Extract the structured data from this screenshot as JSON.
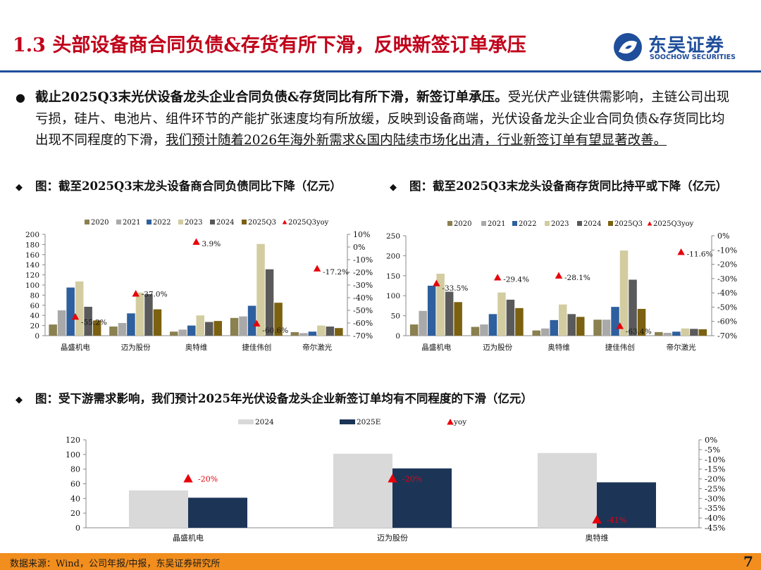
{
  "header": {
    "title": "1.3 头部设备商合同负债&存货有所下滑，反映新签订单承压",
    "logo_cn": "东吴证券",
    "logo_en": "SOOCHOW SECURITIES"
  },
  "bullet": {
    "bold": "截止2025Q3末光伏设备龙头企业合同负债&存货同比有所下滑，新签订单承压。",
    "normal": "受光伏产业链供需影响，主链公司出现亏损，硅片、电池片、组件环节的产能扩张速度均有所放缓，反映到设备商端，光伏设备龙头企业合同负债&存货同比均出现不同程度的下滑，",
    "underlined": "我们预计随着2026年海外新需求&国内陆续市场化出清，行业新签订单有望显著改善。"
  },
  "figures": {
    "fig1_title": "图：截至2025Q3末龙头设备商合同负债同比下降（亿元）",
    "fig2_title": "图：截至2025Q3末龙头设备商存货同比持平或下降（亿元）",
    "fig3_title": "图：受下游需求影响，我们预计2025年光伏设备龙头企业新签订单均有不同程度的下滑（亿元）"
  },
  "footer": {
    "source": "数据来源：Wind，公司年报/中报，东吴证券研究所",
    "page": "7"
  },
  "colors": {
    "title_red": "#c0001a",
    "brand_blue": "#1f4e9a",
    "footer_orange": "#f28e1d",
    "s2020": "#8a8050",
    "s2021": "#a9a9a9",
    "s2022": "#2e5f9e",
    "s2023": "#d2cca0",
    "s2024": "#5a5a5a",
    "s2025Q3": "#7b6110",
    "yoy": "#e8000b",
    "s2024_light": "#d9d9d9",
    "s2025E": "#1c3557"
  },
  "chart_data": [
    {
      "id": "chart1",
      "type": "bar",
      "categories": [
        "晶盛机电",
        "迈为股份",
        "奥特维",
        "捷佳伟创",
        "帝尔激光"
      ],
      "series": [
        {
          "name": "2020",
          "values": [
            22,
            18,
            8,
            35,
            7
          ]
        },
        {
          "name": "2021",
          "values": [
            50,
            25,
            12,
            38,
            5
          ]
        },
        {
          "name": "2022",
          "values": [
            95,
            44,
            20,
            59,
            8
          ]
        },
        {
          "name": "2023",
          "values": [
            107,
            85,
            40,
            181,
            20
          ]
        },
        {
          "name": "2024",
          "values": [
            57,
            82,
            27,
            131,
            18
          ]
        },
        {
          "name": "2025Q3",
          "values": [
            30,
            52,
            29,
            65,
            15
          ]
        }
      ],
      "yoy": {
        "name": "2025Q3yoy",
        "values": [
          -55.2,
          -37.0,
          3.9,
          -60.6,
          -17.2
        ],
        "labels": [
          "-55.2%",
          "-37.0%",
          "3.9%",
          "-60.6%",
          "-17.2%"
        ]
      },
      "ylim": [
        0,
        200
      ],
      "yticks": [
        "0",
        "20",
        "40",
        "60",
        "80",
        "100",
        "120",
        "140",
        "160",
        "180",
        "200"
      ],
      "y2lim": [
        -70,
        10
      ],
      "y2ticks": [
        "-70%",
        "-60%",
        "-50%",
        "-40%",
        "-30%",
        "-20%",
        "-10%",
        "0%",
        "10%"
      ],
      "legend": "top"
    },
    {
      "id": "chart2",
      "type": "bar",
      "categories": [
        "晶盛机电",
        "迈为股份",
        "奥特维",
        "捷佳伟创",
        "帝尔激光"
      ],
      "series": [
        {
          "name": "2020",
          "values": [
            28,
            22,
            13,
            40,
            9
          ]
        },
        {
          "name": "2021",
          "values": [
            62,
            28,
            18,
            40,
            7
          ]
        },
        {
          "name": "2022",
          "values": [
            125,
            54,
            39,
            72,
            10
          ]
        },
        {
          "name": "2023",
          "values": [
            155,
            108,
            78,
            213,
            18
          ]
        },
        {
          "name": "2024",
          "values": [
            110,
            90,
            54,
            140,
            17
          ]
        },
        {
          "name": "2025Q3",
          "values": [
            84,
            69,
            47,
            67,
            16
          ]
        }
      ],
      "yoy": {
        "name": "2025Q3yoy",
        "values": [
          -33.5,
          -29.4,
          -28.1,
          -63.4,
          -11.6
        ],
        "labels": [
          "-33.5%",
          "-29.4%",
          "-28.1%",
          "-63.4%",
          "-11.6%"
        ]
      },
      "ylim": [
        0,
        250
      ],
      "yticks": [
        "0",
        "50",
        "100",
        "150",
        "200",
        "250"
      ],
      "y2lim": [
        -70,
        0
      ],
      "y2ticks": [
        "-70%",
        "-60%",
        "-50%",
        "-40%",
        "-30%",
        "-20%",
        "-10%",
        "0%"
      ],
      "legend": "top"
    },
    {
      "id": "chart3",
      "type": "bar",
      "categories": [
        "晶盛机电",
        "迈为股份",
        "奥特维"
      ],
      "series": [
        {
          "name": "2024",
          "values": [
            51,
            101,
            102
          ]
        },
        {
          "name": "2025E",
          "values": [
            41,
            81,
            62
          ]
        }
      ],
      "yoy": {
        "name": "yoy",
        "values": [
          -20,
          -20,
          -41
        ],
        "labels": [
          "-20%",
          "-20%",
          "-41%"
        ]
      },
      "ylim": [
        0,
        120
      ],
      "yticks": [
        "0",
        "20",
        "40",
        "60",
        "80",
        "100",
        "120"
      ],
      "y2lim": [
        -45,
        0
      ],
      "y2ticks": [
        "-45%",
        "-40%",
        "-35%",
        "-30%",
        "-25%",
        "-20%",
        "-15%",
        "-10%",
        "-5%",
        "0%"
      ],
      "legend": "top"
    }
  ]
}
